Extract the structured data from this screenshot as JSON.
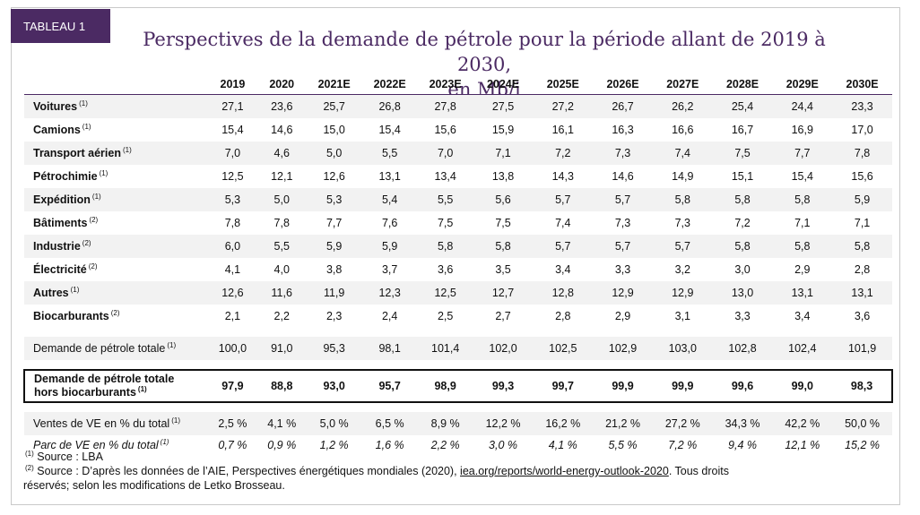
{
  "badge": "TABLEAU 1",
  "title": {
    "line1": "Perspectives de la demande de pétrole pour la période allant de 2019 à 2030,",
    "line2": "en Mb/j"
  },
  "table": {
    "years": [
      "2019",
      "2020",
      "2021E",
      "2022E",
      "2023E",
      "2024E",
      "2025E",
      "2026E",
      "2027E",
      "2028E",
      "2029E",
      "2030E"
    ],
    "rows": [
      {
        "label": "Voitures",
        "note": "(1)",
        "values": [
          "27,1",
          "23,6",
          "25,7",
          "26,8",
          "27,8",
          "27,5",
          "27,2",
          "26,7",
          "26,2",
          "25,4",
          "24,4",
          "23,3"
        ]
      },
      {
        "label": "Camions",
        "note": "(1)",
        "values": [
          "15,4",
          "14,6",
          "15,0",
          "15,4",
          "15,6",
          "15,9",
          "16,1",
          "16,3",
          "16,6",
          "16,7",
          "16,9",
          "17,0"
        ]
      },
      {
        "label": "Transport aérien",
        "note": "(1)",
        "values": [
          "7,0",
          "4,6",
          "5,0",
          "5,5",
          "7,0",
          "7,1",
          "7,2",
          "7,3",
          "7,4",
          "7,5",
          "7,7",
          "7,8"
        ]
      },
      {
        "label": "Pétrochimie",
        "note": "(1)",
        "values": [
          "12,5",
          "12,1",
          "12,6",
          "13,1",
          "13,4",
          "13,8",
          "14,3",
          "14,6",
          "14,9",
          "15,1",
          "15,4",
          "15,6"
        ]
      },
      {
        "label": "Expédition",
        "note": "(1)",
        "values": [
          "5,3",
          "5,0",
          "5,3",
          "5,4",
          "5,5",
          "5,6",
          "5,7",
          "5,7",
          "5,8",
          "5,8",
          "5,8",
          "5,9"
        ]
      },
      {
        "label": "Bâtiments",
        "note": "(2)",
        "values": [
          "7,8",
          "7,8",
          "7,7",
          "7,6",
          "7,5",
          "7,5",
          "7,4",
          "7,3",
          "7,3",
          "7,2",
          "7,1",
          "7,1"
        ]
      },
      {
        "label": "Industrie",
        "note": "(2)",
        "values": [
          "6,0",
          "5,5",
          "5,9",
          "5,9",
          "5,8",
          "5,8",
          "5,7",
          "5,7",
          "5,7",
          "5,8",
          "5,8",
          "5,8"
        ]
      },
      {
        "label": "Électricité",
        "note": "(2)",
        "values": [
          "4,1",
          "4,0",
          "3,8",
          "3,7",
          "3,6",
          "3,5",
          "3,4",
          "3,3",
          "3,2",
          "3,0",
          "2,9",
          "2,8"
        ]
      },
      {
        "label": "Autres",
        "note": "(1)",
        "values": [
          "12,6",
          "11,6",
          "11,9",
          "12,3",
          "12,5",
          "12,7",
          "12,8",
          "12,9",
          "12,9",
          "13,0",
          "13,1",
          "13,1"
        ]
      },
      {
        "label": "Biocarburants",
        "note": "(2)",
        "values": [
          "2,1",
          "2,2",
          "2,3",
          "2,4",
          "2,5",
          "2,7",
          "2,8",
          "2,9",
          "3,1",
          "3,3",
          "3,4",
          "3,6"
        ]
      }
    ],
    "total": {
      "label": "Demande de pétrole totale",
      "note": "(1)",
      "values": [
        "100,0",
        "91,0",
        "95,3",
        "98,1",
        "101,4",
        "102,0",
        "102,5",
        "102,9",
        "103,0",
        "102,8",
        "102,4",
        "101,9"
      ]
    },
    "highlight": {
      "label1": "Demande de pétrole totale",
      "label2": "hors biocarburants",
      "note": "(1)",
      "values": [
        "97,9",
        "88,8",
        "93,0",
        "95,7",
        "98,9",
        "99,3",
        "99,7",
        "99,9",
        "99,9",
        "99,6",
        "99,0",
        "98,3"
      ]
    },
    "ev_sales": {
      "label": "Ventes de VE en % du total",
      "note": "(1)",
      "values": [
        "2,5 %",
        "4,1 %",
        "5,0 %",
        "6,5 %",
        "8,9 %",
        "12,2 %",
        "16,2 %",
        "21,2 %",
        "27,2 %",
        "34,3 %",
        "42,2 %",
        "50,0 %"
      ]
    },
    "ev_fleet": {
      "label": "Parc de VE en % du total",
      "note": "(1)",
      "values": [
        "0,7 %",
        "0,9 %",
        "1,2 %",
        "1,6 %",
        "2,2 %",
        "3,0 %",
        "4,1 %",
        "5,5 %",
        "7,2 %",
        "9,4 %",
        "12,1 %",
        "15,2 %"
      ]
    }
  },
  "notes": {
    "n1_mark": "(1)",
    "n1_text": " Source : LBA",
    "n2_mark": "(2)",
    "n2_text": " Source : D’après les données de l’AIE, Perspectives énergétiques mondiales (2020), ",
    "n2_link": "iea.org/reports/world-energy-outlook-2020",
    "n2_tail": ". Tous droits",
    "n2_line2": "réservés; selon les modifications de Letko Brosseau."
  }
}
